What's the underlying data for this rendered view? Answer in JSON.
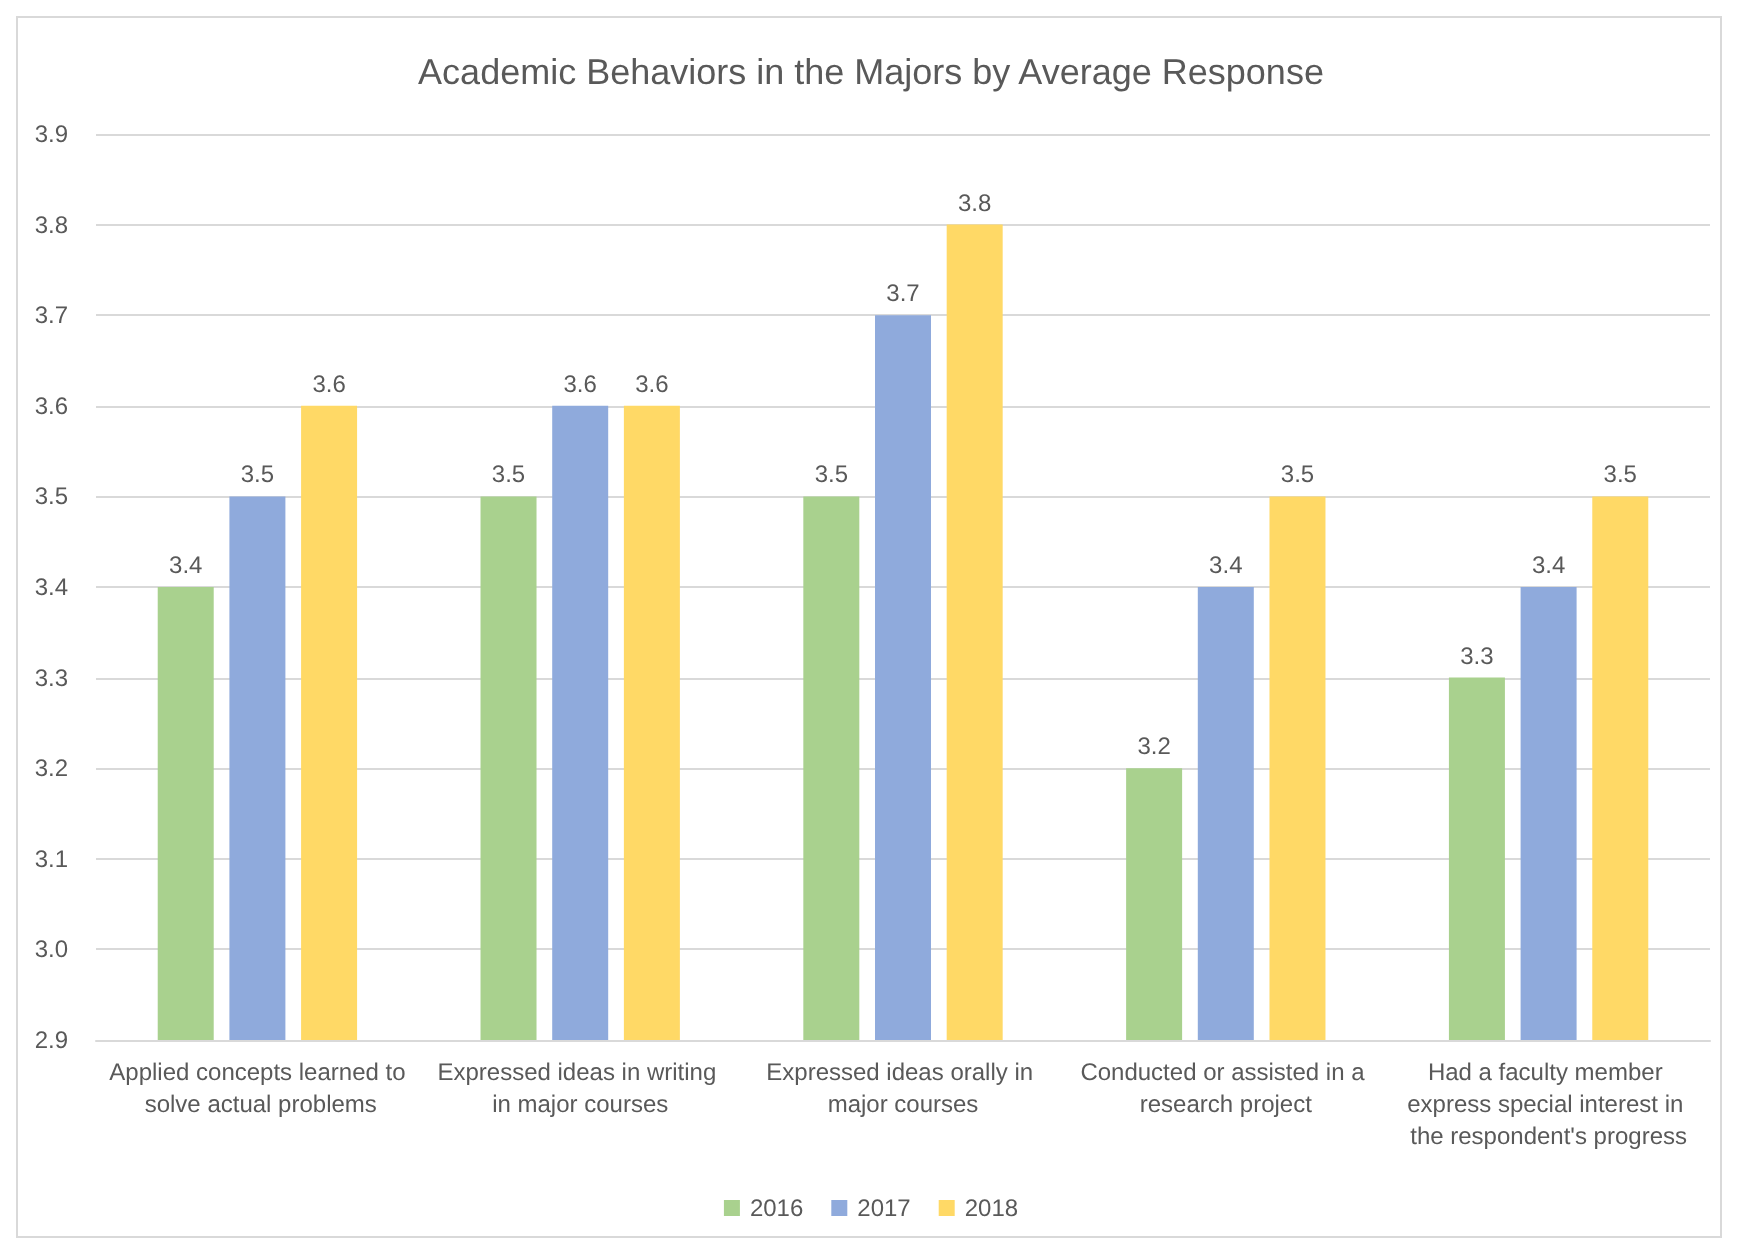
{
  "chart_data": {
    "type": "bar",
    "title": "Academic Behaviors in the Majors by Average Response",
    "categories": [
      "Applied concepts learned to solve actual problems",
      "Expressed ideas in writing in major courses",
      "Expressed ideas orally in major courses",
      "Conducted or assisted in a research project",
      "Had a faculty member express special interest in the respondent's progress"
    ],
    "series": [
      {
        "name": "2016",
        "color": "#a9d18e",
        "values": [
          3.4,
          3.5,
          3.5,
          3.2,
          3.3
        ]
      },
      {
        "name": "2017",
        "color": "#8faadc",
        "values": [
          3.5,
          3.6,
          3.7,
          3.4,
          3.4
        ]
      },
      {
        "name": "2018",
        "color": "#ffd966",
        "values": [
          3.6,
          3.6,
          3.8,
          3.5,
          3.5
        ]
      }
    ],
    "ylim": [
      2.9,
      3.9
    ],
    "yticks": [
      2.9,
      {
        "value": 3,
        "label": "3.0"
      },
      3.1,
      3.2,
      3.3,
      3.4,
      3.5,
      3.6,
      3.7,
      3.8,
      3.9
    ],
    "grid": "y",
    "legend": "bottom",
    "data_labels": true
  }
}
